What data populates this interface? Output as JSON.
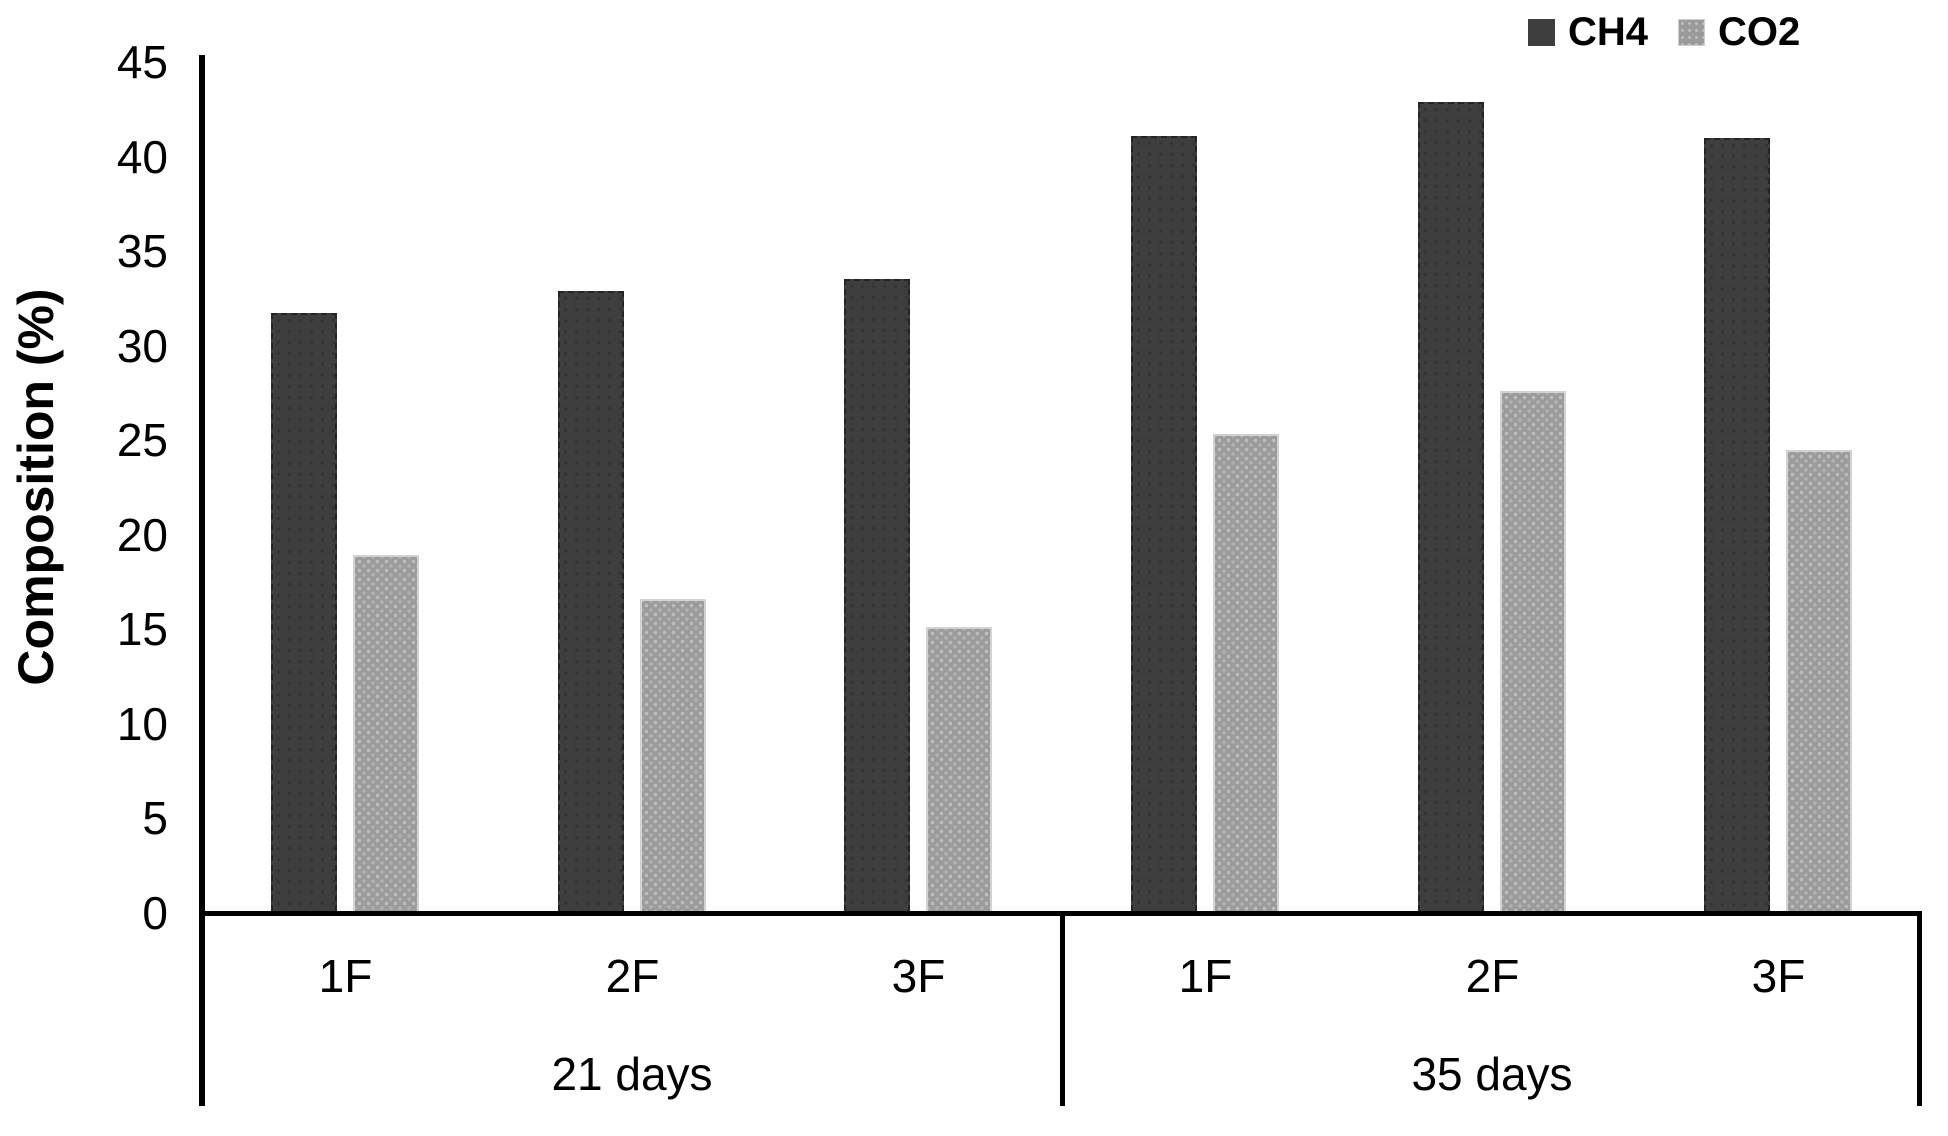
{
  "chart_data": {
    "type": "bar",
    "title": "",
    "ylabel": "Composition (%)",
    "xlabel": "",
    "ylim": [
      0,
      45
    ],
    "yticks": [
      0,
      5,
      10,
      15,
      20,
      25,
      30,
      35,
      40,
      45
    ],
    "grid": false,
    "legend_position": "top-right",
    "groups": [
      {
        "label": "21 days",
        "categories": [
          "1F",
          "2F",
          "3F"
        ]
      },
      {
        "label": "35 days",
        "categories": [
          "1F",
          "2F",
          "3F"
        ]
      }
    ],
    "series": [
      {
        "name": "CH4",
        "color": "#3e3e3e",
        "pattern": "solid-dark-dotted-edge",
        "values": [
          31.6,
          32.8,
          33.4,
          41.0,
          42.8,
          40.9
        ]
      },
      {
        "name": "CO2",
        "color": "#9b9b9b",
        "pattern": "light-speckled",
        "values": [
          18.8,
          16.5,
          15.0,
          25.2,
          27.5,
          24.4
        ]
      }
    ]
  }
}
